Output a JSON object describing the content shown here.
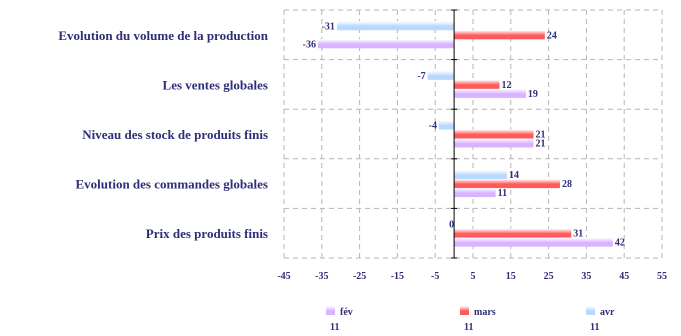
{
  "chart_data": {
    "type": "bar",
    "orientation": "horizontal",
    "categories": [
      "Evolution du volume de la production",
      "Les ventes globales",
      "Niveau des stock de produits finis",
      "Evolution des commandes globales",
      "Prix des produits finis"
    ],
    "series": [
      {
        "name": "fév",
        "name_line2": "11",
        "values": [
          -36,
          19,
          21,
          11,
          42
        ],
        "color": "#d9b3ff"
      },
      {
        "name": "mars",
        "name_line2": "11",
        "values": [
          24,
          12,
          21,
          28,
          31
        ],
        "color": "#ff5a5a"
      },
      {
        "name": "avr",
        "name_line2": "11",
        "values": [
          -31,
          -7,
          -4,
          14,
          0
        ],
        "color": "#b8d8ff"
      }
    ],
    "xlim": [
      -45,
      55
    ],
    "xticks": [
      -45,
      -35,
      -25,
      -15,
      -5,
      5,
      15,
      25,
      35,
      45,
      55
    ],
    "grid": true,
    "legend_position": "bottom",
    "title": "",
    "xlabel": "",
    "ylabel": ""
  }
}
